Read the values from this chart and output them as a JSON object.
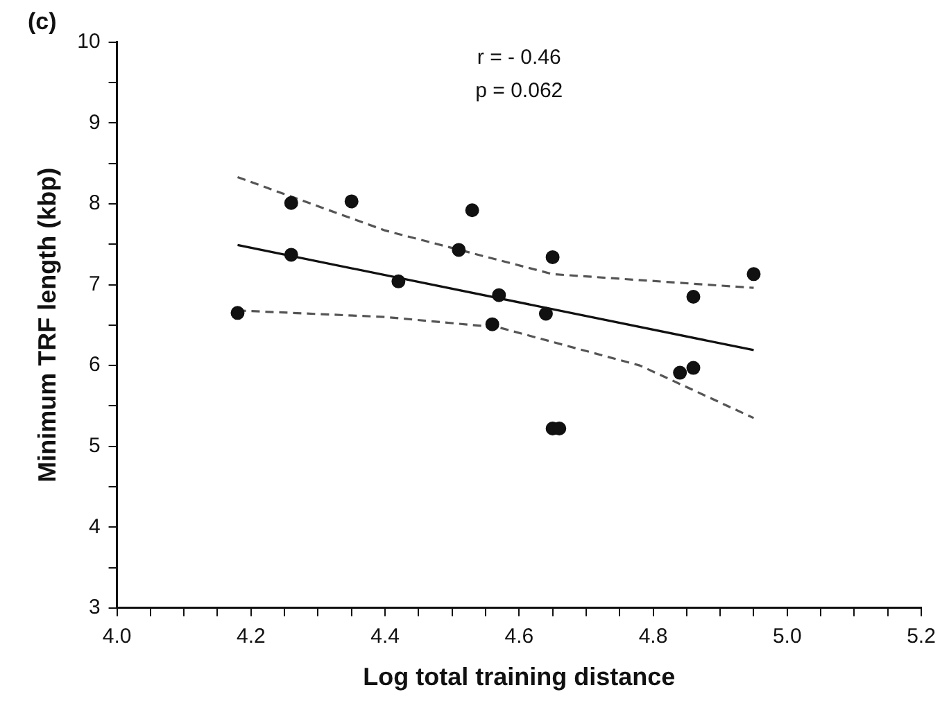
{
  "chart_data": {
    "type": "scatter",
    "title": "(c)",
    "xlabel": "Log total training distance",
    "ylabel": "Minimum TRF length (kbp)",
    "annotations": [
      "r = - 0.46",
      "p = 0.062"
    ],
    "x": [
      4.18,
      4.26,
      4.26,
      4.35,
      4.42,
      4.51,
      4.53,
      4.56,
      4.57,
      4.64,
      4.65,
      4.65,
      4.66,
      4.84,
      4.86,
      4.86,
      4.95
    ],
    "series": [
      {
        "type": "scatter",
        "color": "#111111",
        "values": [
          6.65,
          8.01,
          7.37,
          8.03,
          7.04,
          7.43,
          7.92,
          6.51,
          6.87,
          6.64,
          7.34,
          5.22,
          5.22,
          5.91,
          5.97,
          6.85,
          7.13
        ]
      },
      {
        "type": "line",
        "color": "#111111",
        "line_style": "solid",
        "marker": "none",
        "x": [
          4.18,
          4.95
        ],
        "values": [
          7.49,
          6.19
        ]
      },
      {
        "type": "line",
        "color": "#555555",
        "line_style": "dashed",
        "marker": "none",
        "x": [
          4.18,
          4.4,
          4.65,
          4.95
        ],
        "values": [
          8.33,
          7.67,
          7.13,
          6.96
        ]
      },
      {
        "type": "line",
        "color": "#555555",
        "line_style": "dashed",
        "marker": "none",
        "x": [
          4.18,
          4.4,
          4.57,
          4.78,
          4.95
        ],
        "values": [
          6.68,
          6.6,
          6.47,
          6.0,
          5.35
        ]
      }
    ],
    "marker": "circle",
    "grid": false,
    "legend": false,
    "xlim": [
      4.0,
      5.2
    ],
    "xticks": [
      {
        "value": 4,
        "label": "4.0"
      },
      {
        "value": 4.05,
        "label": null
      },
      {
        "value": 4.1,
        "label": null
      },
      {
        "value": 4.15,
        "label": null
      },
      {
        "value": 4.2,
        "label": "4.2"
      },
      {
        "value": 4.25,
        "label": null
      },
      {
        "value": 4.3,
        "label": null
      },
      {
        "value": 4.35,
        "label": null
      },
      {
        "value": 4.4,
        "label": "4.4"
      },
      {
        "value": 4.45,
        "label": null
      },
      {
        "value": 4.5,
        "label": null
      },
      {
        "value": 4.55,
        "label": null
      },
      {
        "value": 4.6,
        "label": "4.6"
      },
      {
        "value": 4.65,
        "label": null
      },
      {
        "value": 4.7,
        "label": null
      },
      {
        "value": 4.75,
        "label": null
      },
      {
        "value": 4.8,
        "label": "4.8"
      },
      {
        "value": 4.85,
        "label": null
      },
      {
        "value": 4.9,
        "label": null
      },
      {
        "value": 4.95,
        "label": null
      },
      {
        "value": 5,
        "label": "5.0"
      },
      {
        "value": 5.05,
        "label": null
      },
      {
        "value": 5.1,
        "label": null
      },
      {
        "value": 5.15,
        "label": null
      },
      {
        "value": 5.2,
        "label": "5.2"
      }
    ],
    "ylim": [
      3,
      10
    ],
    "yticks": [
      3,
      {
        "value": 3.5,
        "label": null
      },
      4,
      {
        "value": 4.5,
        "label": null
      },
      5,
      {
        "value": 5.5,
        "label": null
      },
      6,
      {
        "value": 6.5,
        "label": null
      },
      7,
      {
        "value": 7.5,
        "label": null
      },
      8,
      {
        "value": 8.5,
        "label": null
      },
      9,
      {
        "value": 9.5,
        "label": null
      },
      10
    ]
  }
}
